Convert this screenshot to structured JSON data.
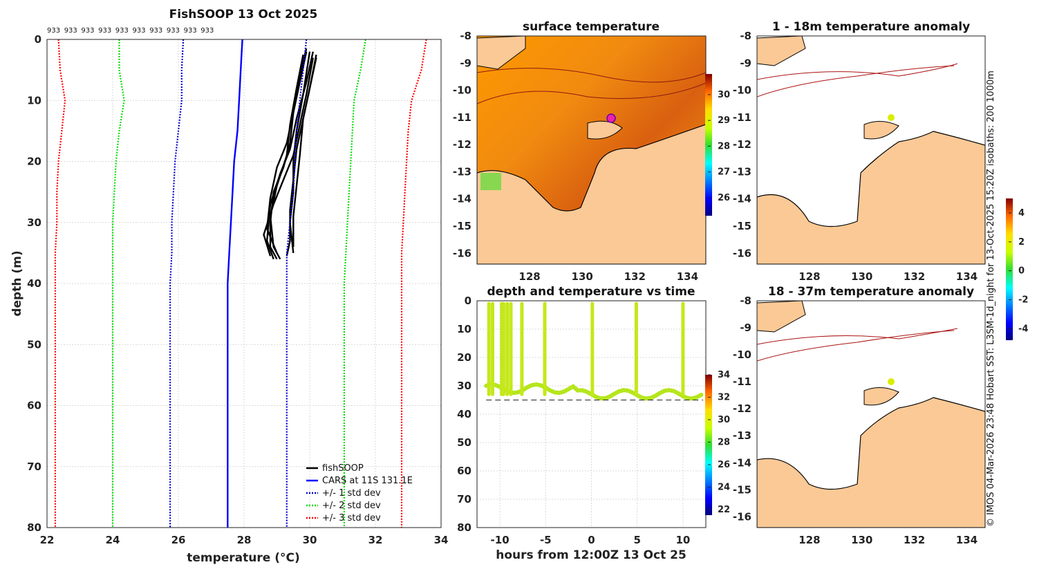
{
  "chart_data": [
    {
      "type": "line",
      "title": "FishSOOP 13 Oct 2025",
      "xlabel": "temperature (°C)",
      "ylabel": "depth (m)",
      "xlim": [
        22,
        34
      ],
      "ylim": [
        0,
        80
      ],
      "y_reversed": true,
      "xticks": [
        "22",
        "24",
        "26",
        "28",
        "30",
        "32",
        "34"
      ],
      "yticks": [
        "0",
        "10",
        "20",
        "30",
        "40",
        "50",
        "60",
        "70",
        "80"
      ],
      "top_annotations": [
        "933",
        "933",
        "933",
        "933",
        "933",
        "933",
        "933",
        "933",
        "933",
        "933"
      ],
      "series": [
        {
          "name": "fishSOOP",
          "color": "#000000",
          "style": "solid",
          "profiles": [
            [
              [
                29.9,
                1.5
              ],
              [
                29.7,
                6
              ],
              [
                29.5,
                12
              ],
              [
                29.4,
                17
              ],
              [
                29.2,
                21
              ],
              [
                28.9,
                25
              ],
              [
                28.8,
                30
              ],
              [
                28.8,
                34
              ],
              [
                29.0,
                36
              ]
            ],
            [
              [
                30.1,
                2
              ],
              [
                29.9,
                7
              ],
              [
                29.6,
                13
              ],
              [
                29.4,
                18
              ],
              [
                29.1,
                22
              ],
              [
                28.8,
                27
              ],
              [
                28.7,
                33
              ],
              [
                28.9,
                36
              ]
            ],
            [
              [
                30.2,
                3
              ],
              [
                30.0,
                8
              ],
              [
                29.8,
                13
              ],
              [
                29.6,
                18
              ],
              [
                29.5,
                23
              ],
              [
                29.4,
                28
              ],
              [
                29.4,
                33
              ],
              [
                29.3,
                35.5
              ]
            ],
            [
              [
                29.8,
                2.5
              ],
              [
                29.6,
                8
              ],
              [
                29.4,
                14
              ],
              [
                29.3,
                19
              ],
              [
                29.0,
                24
              ],
              [
                28.8,
                29
              ],
              [
                28.9,
                34
              ],
              [
                29.1,
                36
              ]
            ],
            [
              [
                30.0,
                2
              ],
              [
                29.8,
                9
              ],
              [
                29.6,
                15
              ],
              [
                29.5,
                20
              ],
              [
                29.5,
                25
              ],
              [
                29.4,
                30
              ],
              [
                29.5,
                35
              ]
            ],
            [
              [
                30.1,
                3
              ],
              [
                29.9,
                9
              ],
              [
                29.7,
                14
              ],
              [
                29.5,
                19
              ],
              [
                29.2,
                23
              ],
              [
                28.9,
                27
              ],
              [
                28.6,
                32
              ],
              [
                28.8,
                35.5
              ]
            ],
            [
              [
                29.9,
                2
              ],
              [
                29.7,
                7
              ],
              [
                29.5,
                12
              ],
              [
                29.3,
                17
              ],
              [
                29.0,
                21
              ],
              [
                28.8,
                26
              ],
              [
                28.7,
                31
              ],
              [
                29.0,
                35
              ]
            ],
            [
              [
                30.2,
                2.5
              ],
              [
                30.0,
                8
              ],
              [
                29.8,
                13
              ],
              [
                29.7,
                19
              ],
              [
                29.6,
                24
              ],
              [
                29.5,
                29
              ],
              [
                29.5,
                34
              ]
            ]
          ]
        },
        {
          "name": "CARS at 11S 131.1E",
          "color": "#0000ff",
          "style": "solid",
          "x": [
            27.95,
            27.9,
            27.85,
            27.8,
            27.7,
            27.65,
            27.6,
            27.55,
            27.5,
            27.5,
            27.5
          ],
          "y": [
            0,
            5,
            10,
            15,
            20,
            25,
            30,
            35,
            40,
            60,
            80
          ]
        },
        {
          "name": "+/- 1 std dev",
          "color": "#0000cc",
          "style": "dotted",
          "x": [
            26.15,
            26.1,
            26.1,
            26.0,
            25.9,
            25.85,
            25.8,
            25.8,
            25.75,
            25.75,
            25.75
          ],
          "y": [
            0,
            5,
            10,
            15,
            20,
            25,
            30,
            35,
            40,
            60,
            80
          ],
          "x2": [
            29.9,
            29.8,
            29.7,
            29.6,
            29.55,
            29.5,
            29.4,
            29.3,
            29.3,
            29.3,
            29.3
          ],
          "y2": [
            0,
            5,
            10,
            15,
            20,
            25,
            30,
            35,
            40,
            60,
            80
          ]
        },
        {
          "name": "+/- 2 std dev",
          "color": "#00dd00",
          "style": "dotted",
          "x": [
            24.2,
            24.2,
            24.35,
            24.2,
            24.1,
            24.05,
            24.0,
            24.0,
            24.0,
            24.0,
            24.0
          ],
          "y": [
            0,
            5,
            10,
            15,
            20,
            25,
            30,
            35,
            40,
            60,
            80
          ],
          "x2": [
            31.7,
            31.55,
            31.35,
            31.3,
            31.25,
            31.2,
            31.15,
            31.1,
            31.05,
            31.05,
            31.05
          ],
          "y2": [
            0,
            5,
            10,
            15,
            20,
            25,
            30,
            35,
            40,
            60,
            80
          ]
        },
        {
          "name": "+/- 3 std dev",
          "color": "#ff0000",
          "style": "dotted",
          "x": [
            22.35,
            22.4,
            22.55,
            22.45,
            22.35,
            22.3,
            22.3,
            22.25,
            22.25,
            22.25,
            22.25
          ],
          "y": [
            0,
            5,
            10,
            15,
            20,
            25,
            30,
            35,
            40,
            60,
            80
          ],
          "x2": [
            33.55,
            33.4,
            33.1,
            33.0,
            32.95,
            32.9,
            32.85,
            32.8,
            32.8,
            32.8,
            32.8
          ],
          "y2": [
            0,
            5,
            10,
            15,
            20,
            25,
            30,
            35,
            40,
            60,
            80
          ]
        }
      ],
      "legend_position": "bottom-right"
    },
    {
      "type": "heatmap",
      "title": "surface temperature",
      "xlim": [
        126.0,
        134.7
      ],
      "ylim": [
        -16.4,
        -8
      ],
      "xticks": [
        "128",
        "130",
        "132",
        "134"
      ],
      "yticks": [
        "-8",
        "-9",
        "-10",
        "-11",
        "-12",
        "-13",
        "-14",
        "-15",
        "-16"
      ],
      "colorbar": {
        "ticks": [
          "26",
          "27",
          "28",
          "29",
          "30"
        ],
        "range": [
          25.3,
          30.8
        ]
      }
    },
    {
      "type": "scatter",
      "title": "depth and temperature vs time",
      "xlabel": "hours from 12:00Z 13 Oct 25",
      "xlim": [
        -12.5,
        12.5
      ],
      "ylim": [
        0,
        80
      ],
      "y_reversed": true,
      "xticks": [
        "-10",
        "-5",
        "0",
        "5",
        "10"
      ],
      "yticks": [
        "0",
        "10",
        "20",
        "30",
        "40",
        "50",
        "60",
        "70",
        "80"
      ],
      "colorbar": {
        "ticks": [
          "22",
          "24",
          "26",
          "28",
          "30",
          "32",
          "34"
        ],
        "range": [
          21.5,
          34
        ]
      },
      "casts_hours": [
        -11.2,
        -10.8,
        -9.8,
        -9.6,
        -9.2,
        -8.8,
        -7.6,
        -5.1,
        0.1,
        4.9,
        10.0
      ],
      "track_depth_m": 35
    },
    {
      "type": "heatmap",
      "title": "1 - 18m temperature anomaly",
      "xlim": [
        126.0,
        134.7
      ],
      "ylim": [
        -16.4,
        -8
      ],
      "xticks": [
        "128",
        "130",
        "132",
        "134"
      ],
      "yticks": [
        "-8",
        "-9",
        "-10",
        "-11",
        "-12",
        "-13",
        "-14",
        "-15",
        "-16"
      ]
    },
    {
      "type": "heatmap",
      "title": "18 - 37m temperature anomaly",
      "xlim": [
        126.0,
        134.7
      ],
      "ylim": [
        -16.4,
        -8
      ],
      "xticks": [
        "128",
        "130",
        "132",
        "134"
      ],
      "yticks": [
        "-8",
        "-9",
        "-10",
        "-11",
        "-12",
        "-13",
        "-14",
        "-15",
        "-16"
      ],
      "colorbar": {
        "ticks": [
          "4",
          "2",
          "0",
          "-2",
          "-4"
        ],
        "range": [
          -4.8,
          5
        ]
      }
    }
  ],
  "credit": "© IMOS 04-Mar-2026 23:48 Hobart SST: L3SM-1d_night for 13-Oct-2025 15:20Z isobaths: 200  1000m",
  "colors": {
    "land": "#fbc996",
    "coast": "#000000",
    "isobath": "#aa1111"
  }
}
